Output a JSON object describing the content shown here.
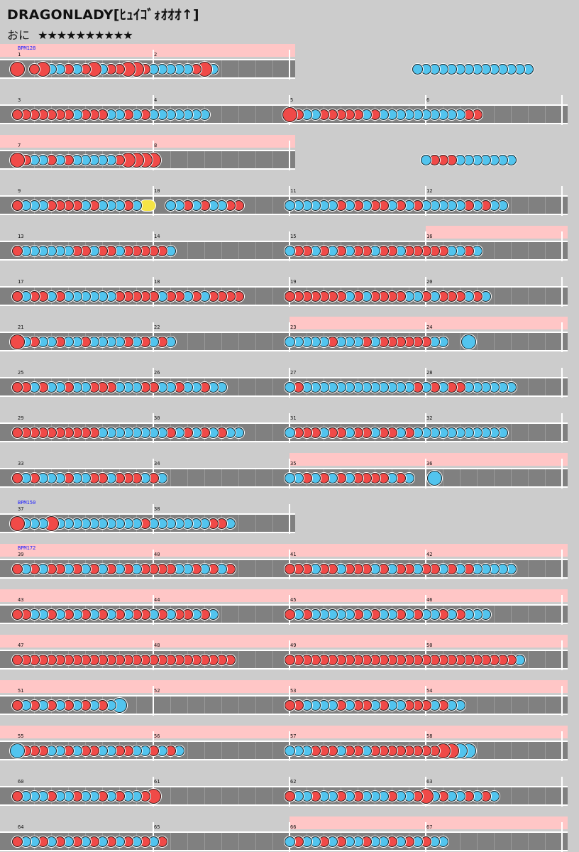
{
  "title": "DRAGONLADY[ﾋｭｲｺﾞｫｵｵｵ↑]",
  "difficulty": {
    "label": "おに",
    "stars": "★★★★★★★★★★"
  },
  "colors": {
    "background": "#cccccc",
    "lane": "#808080",
    "gogo_band": "#ffc6c6",
    "don": "#f04a48",
    "ka": "#52c4ee",
    "drumroll": "#f5e445",
    "bpm_text": "#1a1aff"
  },
  "bpm_changes": [
    {
      "measure": 1,
      "label": "BPM128"
    },
    {
      "measure": 37,
      "label": "BPM150"
    },
    {
      "measure": 39,
      "label": "BPM172"
    },
    {
      "measure": 59,
      "label": "BPM128"
    }
  ],
  "rows": [
    {
      "measures": [
        "1",
        "2"
      ],
      "gogo": [
        0,
        2
      ],
      "notes": [
        "D.dDKKdKdDKddDDdKKKKKdDK..",
        "...............KKKKKKKKKKKKKK"
      ]
    },
    {
      "measures": [
        "3",
        "4",
        "5",
        "6"
      ],
      "gogo": null,
      "notes": [
        "dddddddKdddKKdKdKKKKKKK",
        "DdKKdddddKdKKKKKKKKKKdd"
      ]
    },
    {
      "measures": [
        "7",
        "8"
      ],
      "gogo": [
        0,
        2
      ],
      "notes": [
        "DdKKdKdKKKKKdDDDD....",
        "................KdddKKKKKKK"
      ]
    },
    {
      "measures": [
        "9",
        "10",
        "11",
        "12"
      ],
      "gogo": null,
      "notes": [
        "dKKKddddKdKKKdKR..KKdKdKKdd",
        "KKKKKKdKdKddKdKdKKKKKdKdKK"
      ]
    },
    {
      "measures": [
        "13",
        "14",
        "15",
        "16"
      ],
      "gogo": [
        3,
        4
      ],
      "notes": [
        "dKKKKKKddKddKdddddK",
        "KddKdKdKddKddKdddddKKdK"
      ]
    },
    {
      "measures": [
        "17",
        "18",
        "19",
        "20"
      ],
      "gogo": null,
      "notes": [
        "dKddKdKKKKKKdddddKddKdKdddd",
        "dddddddKdKddddKKdKdddKdK"
      ]
    },
    {
      "measures": [
        "21",
        "22",
        "23",
        "24"
      ],
      "gogo": [
        2,
        4
      ],
      "notes": [
        "DKdKKdKKdKKKKdKdKdK",
        "KKKKKdKKKdKddddddKK..B"
      ]
    },
    {
      "measures": [
        "25",
        "26",
        "27",
        "28"
      ],
      "gogo": null,
      "notes": [
        "ddKdKKdKKdddKKKddKKdKKdKK",
        "KdKKKKKKKKKKKKKdKdKddKKKKKK"
      ]
    },
    {
      "measures": [
        "29",
        "30",
        "31",
        "32"
      ],
      "gogo": null,
      "notes": [
        "ddddddddddKKKKKKKKdKdKdKdKK",
        "KdddKddKddKddKdKKKKKKKKKKK"
      ]
    },
    {
      "measures": [
        "33",
        "34",
        "35",
        "36"
      ],
      "gogo": [
        2,
        4
      ],
      "notes": [
        "dKdKKKdKKddKdddKdK",
        "KKdKdKdKddddKdK..B"
      ]
    },
    {
      "measures": [
        "37",
        "38"
      ],
      "gogo": null,
      "notes": [
        "DKKKDKKKKKKKKKKdKKKKKKKddK",
        ""
      ]
    },
    {
      "measures": [
        "39",
        "40",
        "41",
        "42"
      ],
      "gogo": [
        0,
        4
      ],
      "notes": [
        "dKdKddKdKdKdKdKddddKKdKdKd",
        "dddKddKdddKdKddKddKdKdKKKKK"
      ]
    },
    {
      "measures": [
        "43",
        "44",
        "45",
        "46"
      ],
      "gogo": [
        0,
        4
      ],
      "notes": [
        "ddKKdKdKdKdKdKddKdKddKdK",
        "dKdKKKKKdKdKKdKdKKdKdKKK"
      ]
    },
    {
      "measures": [
        "47",
        "48",
        "49",
        "50"
      ],
      "gogo": [
        0,
        4
      ],
      "notes": [
        "dddddddddddddddddddddddddd",
        "dddddddddddddddddddddddddddK"
      ]
    },
    {
      "measures": [
        "51",
        "52",
        "53",
        "54"
      ],
      "gogo": [
        0,
        4
      ],
      "notes": [
        "dKdKdKdKdKdKB",
        "ddKKKKdKddKdKKdddKdKK"
      ]
    },
    {
      "measures": [
        "55",
        "56",
        "57",
        "58"
      ],
      "gogo": [
        0,
        4
      ],
      "notes": [
        "BdddKKdKddKKddKKdKdK",
        "KKKdddKddKddddddddDDBB"
      ]
    },
    {
      "measures": [
        "60",
        "61",
        "62",
        "63"
      ],
      "gogo": null,
      "notes": [
        "dKKKdKKdKKdKdKKdD",
        "dKKdKKdKdKKKdKKdDKdKKdKdK"
      ]
    },
    {
      "measures": [
        "64",
        "65",
        "66",
        "67"
      ],
      "gogo": [
        2,
        4
      ],
      "notes": [
        "dKKdKdKdKdKdKdKdKd",
        "KdKKdKdKKdKKdKdKdKK"
      ]
    }
  ]
}
